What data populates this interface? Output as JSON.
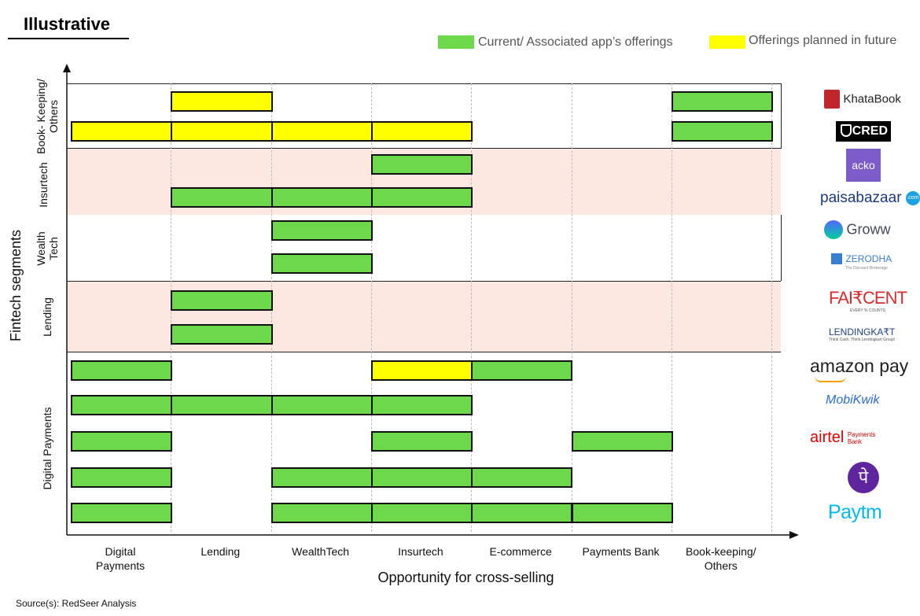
{
  "badge": "Illustrative",
  "legend": [
    {
      "label": "Current/ Associated app’s offerings",
      "color": "#6ed84b"
    },
    {
      "label": "Offerings planned in future",
      "color": "#ffff00"
    }
  ],
  "source": "Source(s): RedSeer Analysis",
  "chart_data": {
    "type": "gantt-matrix",
    "xlabel": "Opportunity for cross-selling",
    "ylabel": "Fintech segments",
    "categories": [
      "Digital\nPayments",
      "Lending",
      "WealthTech",
      "Insurtech",
      "E-commerce",
      "Payments Bank",
      "Book-keeping/\nOthers"
    ],
    "segments": [
      "Book- Keeping/\nOthers",
      "Insurtech",
      "Wealth\nTech",
      "Lending",
      "Digital Payments"
    ],
    "colors": {
      "current": "#6ed84b",
      "planned": "#ffff00",
      "band_shaded": "#fce8e1"
    },
    "apps": [
      {
        "name": "KhataBook",
        "segment": "Book- Keeping/ Others",
        "current": [
          6
        ],
        "planned": [
          1
        ]
      },
      {
        "name": "CRED",
        "segment": "Book- Keeping/ Others",
        "current": [
          6
        ],
        "planned": [
          0,
          1,
          2,
          3
        ]
      },
      {
        "name": "ACKO",
        "segment": "Insurtech",
        "current": [
          3
        ],
        "planned": []
      },
      {
        "name": "paisabazaar",
        "segment": "Insurtech",
        "current": [
          1,
          2,
          3
        ],
        "planned": []
      },
      {
        "name": "Groww",
        "segment": "Wealth Tech",
        "current": [
          2
        ],
        "planned": []
      },
      {
        "name": "ZERODHA",
        "segment": "Wealth Tech",
        "current": [
          2
        ],
        "planned": []
      },
      {
        "name": "FAIRCENT",
        "segment": "Lending",
        "current": [
          1
        ],
        "planned": []
      },
      {
        "name": "LENDINGKART",
        "segment": "Lending",
        "current": [
          1
        ],
        "planned": []
      },
      {
        "name": "amazon pay",
        "segment": "Digital Payments",
        "current": [
          0,
          4
        ],
        "planned": [
          3
        ]
      },
      {
        "name": "MobiKwik",
        "segment": "Digital Payments",
        "current": [
          0,
          1,
          2,
          3
        ],
        "planned": []
      },
      {
        "name": "airtel Payments Bank",
        "segment": "Digital Payments",
        "current": [
          0,
          3,
          5
        ],
        "planned": []
      },
      {
        "name": "PhonePe",
        "segment": "Digital Payments",
        "current": [
          0,
          2,
          3,
          4
        ],
        "planned": []
      },
      {
        "name": "Paytm",
        "segment": "Digital Payments",
        "current": [
          0,
          2,
          3,
          4,
          5
        ],
        "planned": []
      }
    ]
  },
  "logos": {
    "khatabook": "KhataBook",
    "cred": "CRED",
    "acko": "acko",
    "paisabazaar": "paisabazaar",
    "paisabazaar_suffix": ".com",
    "groww": "Groww",
    "zerodha": "ZERODHA",
    "zerodha_tag": "The Discount Brokerage",
    "faircent": "FAI₹CENT",
    "faircent_tag": "EVERY % COUNTS",
    "lendingkart": "LENDINGKA₹T",
    "lendingkart_tag": "Think Cash, Think Lendingkart Group!",
    "amazonpay": "amazon pay",
    "mobikwik": "MobiKwik",
    "airtel": "airtel",
    "airtel_sub": "Payments\nBank",
    "phonepe": "पे",
    "paytm": "Paytm"
  }
}
